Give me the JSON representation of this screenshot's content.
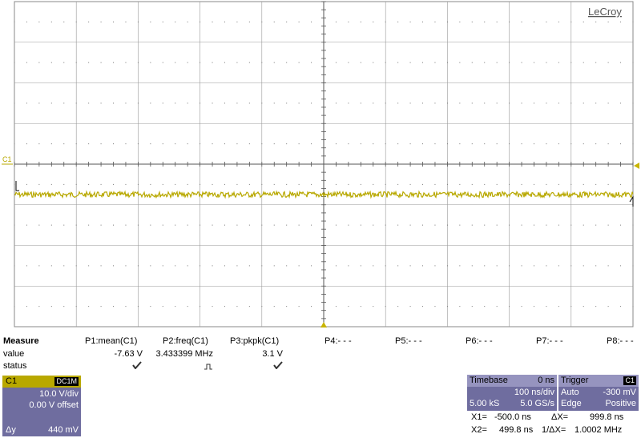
{
  "brand": "LeCroy",
  "channel_marker": "C1",
  "trace_color": "#b8a800",
  "ground_marker_color": "#c8b400",
  "measure": {
    "title": "Measure",
    "rows": {
      "value_label": "value",
      "status_label": "status"
    },
    "params": [
      {
        "name": "P1:mean(C1)",
        "value": "-7.63 V",
        "status": "check-icon"
      },
      {
        "name": "P2:freq(C1)",
        "value": "3.433399 MHz",
        "status": "pulse-icon"
      },
      {
        "name": "P3:pkpk(C1)",
        "value": "3.1 V",
        "status": "check-icon"
      },
      {
        "name": "P4:- - -"
      },
      {
        "name": "P5:- - -"
      },
      {
        "name": "P6:- - -"
      },
      {
        "name": "P7:- - -"
      },
      {
        "name": "P8:- - -"
      }
    ]
  },
  "channel_box": {
    "name": "C1",
    "coupling": "DC1M",
    "vdiv": "10.0 V/div",
    "offset": "0.00 V offset",
    "dy_label": "Δy",
    "dy_value": "440 mV"
  },
  "timebase": {
    "title": "Timebase",
    "delay": "0 ns",
    "tdiv": "100 ns/div",
    "samples": "5.00 kS",
    "rate": "5.0 GS/s"
  },
  "trigger": {
    "title": "Trigger",
    "source": "C1",
    "mode": "Auto",
    "level": "-300 mV",
    "type": "Edge",
    "slope": "Positive"
  },
  "cursors": {
    "x1_label": "X1=",
    "x1_value": "-500.0 ns",
    "x2_label": "X2=",
    "x2_value": "499.8 ns",
    "dx_label": "ΔX=",
    "dx_value": "999.8 ns",
    "inv_dx_label": "1/ΔX=",
    "inv_dx_value": "1.0002 MHz"
  }
}
